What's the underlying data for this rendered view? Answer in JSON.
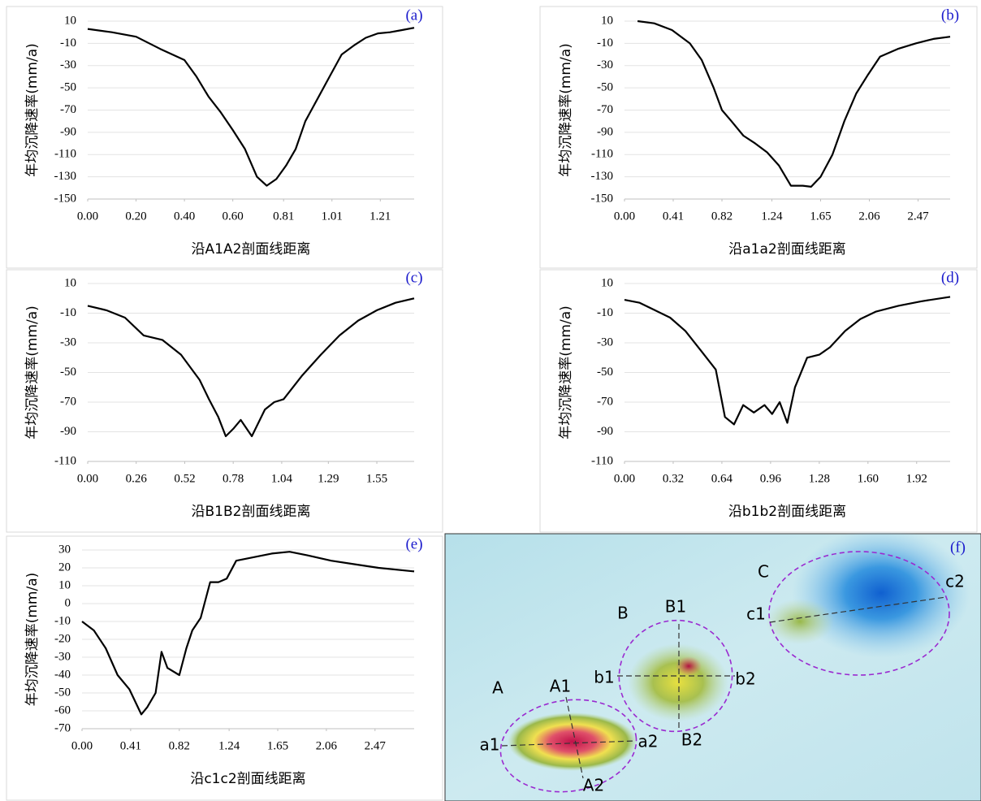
{
  "chart_data": [
    {
      "type": "line",
      "panel_label": "(a)",
      "y_label": "年均沉降速率(mm/a)",
      "x_label": "沿A1A2剖面线距离",
      "x": [
        0,
        0.1,
        0.2,
        0.3,
        0.4,
        0.45,
        0.5,
        0.55,
        0.6,
        0.65,
        0.7,
        0.74,
        0.78,
        0.82,
        0.86,
        0.9,
        0.95,
        1.0,
        1.05,
        1.1,
        1.15,
        1.2,
        1.25,
        1.3,
        1.35
      ],
      "series": [
        {
          "color": "#000000",
          "values": [
            3,
            0,
            -4,
            -15,
            -25,
            -40,
            -58,
            -72,
            -88,
            -105,
            -130,
            -138,
            -132,
            -120,
            -105,
            -80,
            -60,
            -40,
            -20,
            -12,
            -5,
            -1,
            0,
            2,
            4
          ]
        }
      ],
      "xlim": [
        0,
        1.35
      ],
      "xticks": [
        {
          "value": 0,
          "label": "0.00"
        },
        {
          "value": 0.2,
          "label": "0.20"
        },
        {
          "value": 0.4,
          "label": "0.40"
        },
        {
          "value": 0.6,
          "label": "0.60"
        },
        {
          "value": 0.81,
          "label": "0.81"
        },
        {
          "value": 1.01,
          "label": "1.01"
        },
        {
          "value": 1.21,
          "label": "1.21"
        }
      ],
      "ylim": [
        -150,
        10
      ],
      "yticks": [
        10,
        -10,
        -30,
        -50,
        -70,
        -90,
        -110,
        -130,
        -150
      ],
      "grid": true
    },
    {
      "type": "line",
      "panel_label": "(b)",
      "y_label": "年均沉降速率(mm/a)",
      "x_label": "沿a1a2剖面线距离",
      "x": [
        0.11,
        0.25,
        0.4,
        0.55,
        0.65,
        0.75,
        0.82,
        0.9,
        1.0,
        1.1,
        1.2,
        1.3,
        1.4,
        1.5,
        1.57,
        1.65,
        1.75,
        1.85,
        1.95,
        2.05,
        2.15,
        2.3,
        2.45,
        2.6,
        2.74
      ],
      "series": [
        {
          "color": "#000000",
          "values": [
            10,
            8,
            2,
            -10,
            -25,
            -50,
            -70,
            -80,
            -93,
            -100,
            -108,
            -120,
            -138,
            -138,
            -139,
            -130,
            -110,
            -80,
            -55,
            -38,
            -22,
            -15,
            -10,
            -6,
            -4
          ]
        }
      ],
      "xlim": [
        0,
        2.74
      ],
      "xticks": [
        {
          "value": 0,
          "label": "0.00"
        },
        0.41,
        0.82,
        1.24,
        1.65,
        2.06,
        2.47
      ],
      "ylim": [
        -150,
        10
      ],
      "yticks": [
        10,
        -10,
        -30,
        -50,
        -70,
        -90,
        -110,
        -130,
        -150
      ],
      "grid": true
    },
    {
      "type": "line",
      "panel_label": "(c)",
      "y_label": "年均沉降速率(mm/a)",
      "x_label": "沿B1B2剖面线距离",
      "x": [
        0,
        0.1,
        0.2,
        0.3,
        0.4,
        0.5,
        0.6,
        0.65,
        0.7,
        0.74,
        0.78,
        0.82,
        0.88,
        0.95,
        1.0,
        1.05,
        1.15,
        1.25,
        1.35,
        1.45,
        1.55,
        1.65,
        1.75
      ],
      "series": [
        {
          "color": "#000000",
          "values": [
            -5,
            -8,
            -13,
            -25,
            -28,
            -38,
            -55,
            -68,
            -80,
            -93,
            -88,
            -82,
            -93,
            -75,
            -70,
            -68,
            -52,
            -38,
            -25,
            -15,
            -8,
            -3,
            0
          ]
        }
      ],
      "xlim": [
        0,
        1.75
      ],
      "xticks": [
        {
          "value": 0,
          "label": "0.00"
        },
        0.26,
        0.52,
        0.78,
        1.04,
        1.29,
        1.55
      ],
      "ylim": [
        -110,
        10
      ],
      "yticks": [
        10,
        -10,
        -30,
        -50,
        -70,
        -90,
        -110
      ],
      "grid": true
    },
    {
      "type": "line",
      "panel_label": "(d)",
      "y_label": "年均沉降速率(mm/a)",
      "x_label": "沿b1b2剖面线距离",
      "x": [
        0,
        0.1,
        0.2,
        0.3,
        0.4,
        0.5,
        0.6,
        0.66,
        0.72,
        0.78,
        0.85,
        0.92,
        0.97,
        1.02,
        1.07,
        1.12,
        1.2,
        1.28,
        1.35,
        1.45,
        1.55,
        1.65,
        1.8,
        1.95,
        2.14
      ],
      "series": [
        {
          "color": "#000000",
          "values": [
            -1,
            -3,
            -8,
            -13,
            -22,
            -35,
            -48,
            -80,
            -85,
            -72,
            -77,
            -72,
            -78,
            -70,
            -84,
            -60,
            -40,
            -38,
            -33,
            -22,
            -14,
            -9,
            -5,
            -2,
            1
          ]
        }
      ],
      "xlim": [
        0,
        2.14
      ],
      "xticks": [
        {
          "value": 0,
          "label": "0.00"
        },
        0.32,
        0.64,
        0.96,
        1.28,
        {
          "value": 1.6,
          "label": "1.60"
        },
        1.92
      ],
      "ylim": [
        -110,
        10
      ],
      "yticks": [
        10,
        -10,
        -30,
        -50,
        -70,
        -90,
        -110
      ],
      "grid": true
    },
    {
      "type": "line",
      "panel_label": "(e)",
      "y_label": "年均沉降速率(mm/a)",
      "x_label": "沿c1c2剖面线距离",
      "x": [
        0,
        0.1,
        0.2,
        0.3,
        0.4,
        0.5,
        0.55,
        0.62,
        0.67,
        0.72,
        0.82,
        0.88,
        0.93,
        1.0,
        1.08,
        1.15,
        1.22,
        1.3,
        1.45,
        1.6,
        1.75,
        1.9,
        2.1,
        2.3,
        2.5,
        2.8
      ],
      "series": [
        {
          "color": "#000000",
          "values": [
            -10,
            -15,
            -25,
            -40,
            -48,
            -62,
            -58,
            -50,
            -27,
            -36,
            -40,
            -25,
            -15,
            -8,
            12,
            12,
            14,
            24,
            26,
            28,
            29,
            27,
            24,
            22,
            20,
            18
          ]
        }
      ],
      "xlim": [
        0,
        2.8
      ],
      "xticks": [
        {
          "value": 0,
          "label": "0.00"
        },
        0.41,
        0.82,
        1.24,
        1.65,
        2.06,
        2.47
      ],
      "ylim": [
        -70,
        30
      ],
      "yticks": [
        30,
        20,
        10,
        0,
        -10,
        -20,
        -30,
        -40,
        -50,
        -60,
        -70
      ],
      "grid": true
    }
  ],
  "map": {
    "panel_label": "(f)",
    "labels": [
      "A",
      "A1",
      "a1",
      "a2",
      "A2",
      "B",
      "B1",
      "b1",
      "b2",
      "B2",
      "C",
      "c1",
      "c2"
    ]
  }
}
